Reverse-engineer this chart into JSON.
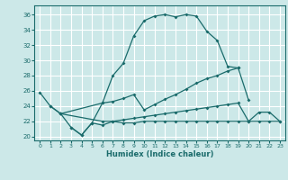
{
  "xlabel": "Humidex (Indice chaleur)",
  "background_color": "#cce8e8",
  "grid_color": "#ffffff",
  "line_color": "#1a6b6b",
  "xlim": [
    -0.5,
    23.5
  ],
  "ylim": [
    19.5,
    37.2
  ],
  "xticks": [
    0,
    1,
    2,
    3,
    4,
    5,
    6,
    7,
    8,
    9,
    10,
    11,
    12,
    13,
    14,
    15,
    16,
    17,
    18,
    19,
    20,
    21,
    22,
    23
  ],
  "yticks": [
    20,
    22,
    24,
    26,
    28,
    30,
    32,
    34,
    36
  ],
  "line1_x": [
    0,
    1,
    2,
    3,
    4,
    5,
    6,
    7,
    8,
    9,
    10,
    11,
    12,
    13,
    14,
    15,
    16,
    17,
    18,
    19
  ],
  "line1_y": [
    25.8,
    24.0,
    23.0,
    21.2,
    20.2,
    21.8,
    24.4,
    28.0,
    29.6,
    33.2,
    35.2,
    35.8,
    36.0,
    35.7,
    36.0,
    35.8,
    33.8,
    32.6,
    29.2,
    29.0
  ],
  "line2_x": [
    1,
    2,
    6,
    7,
    8,
    9,
    10,
    11,
    12,
    13,
    14,
    15,
    16,
    17,
    18,
    19,
    20
  ],
  "line2_y": [
    24.0,
    23.0,
    24.4,
    24.6,
    25.0,
    25.5,
    23.5,
    24.2,
    24.9,
    25.5,
    26.2,
    27.0,
    27.6,
    28.0,
    28.6,
    29.0,
    24.8
  ],
  "line3_x": [
    2,
    6,
    7,
    8,
    9,
    10,
    11,
    12,
    13,
    14,
    15,
    16,
    17,
    18,
    19,
    20,
    21,
    22,
    23
  ],
  "line3_y": [
    23.0,
    22.0,
    22.0,
    22.2,
    22.4,
    22.6,
    22.8,
    23.0,
    23.2,
    23.4,
    23.6,
    23.8,
    24.0,
    24.2,
    24.4,
    22.0,
    23.2,
    23.2,
    22.0
  ],
  "line4_x": [
    3,
    4,
    5,
    6,
    7,
    8,
    9,
    10,
    11,
    12,
    13,
    14,
    15,
    16,
    17,
    18,
    19,
    20,
    21,
    22,
    23
  ],
  "line4_y": [
    21.2,
    20.2,
    21.8,
    21.5,
    22.0,
    21.8,
    21.8,
    22.0,
    22.0,
    22.0,
    22.0,
    22.0,
    22.0,
    22.0,
    22.0,
    22.0,
    22.0,
    22.0,
    22.0,
    22.0,
    22.0
  ]
}
